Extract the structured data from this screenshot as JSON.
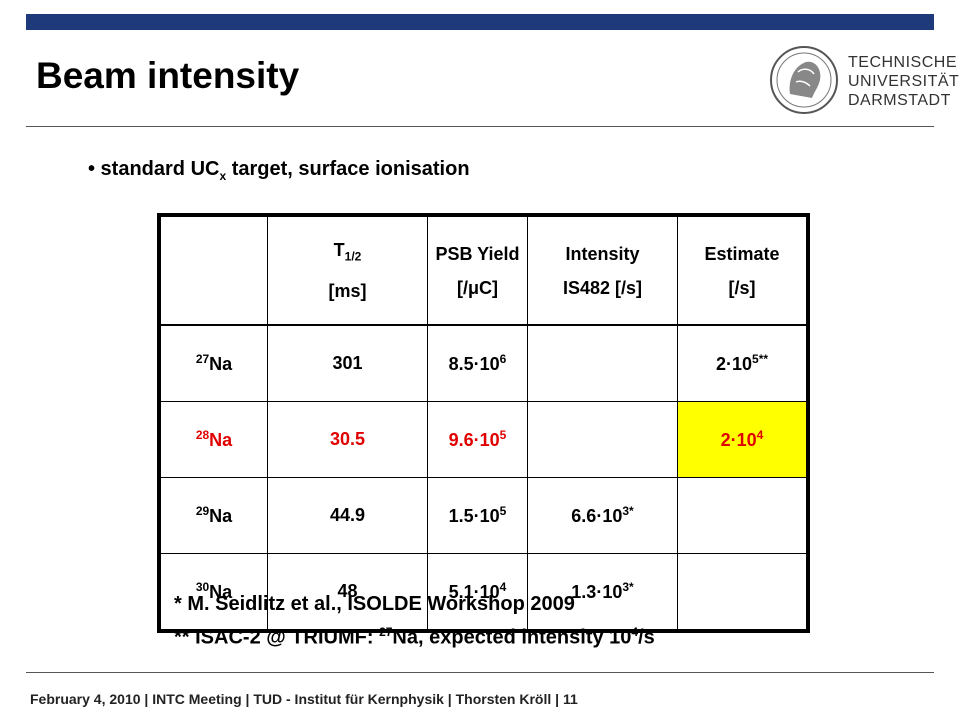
{
  "slide": {
    "title": "Beam intensity",
    "bullet_pre": "• standard UC",
    "bullet_sub": "x",
    "bullet_post": " target, surface ionisation"
  },
  "logo": {
    "line1": "TECHNISCHE",
    "line2": "UNIVERSITÄT",
    "line3": "DARMSTADT"
  },
  "table": {
    "header": {
      "t_half": "T",
      "t_half_sub": "1/2",
      "t_half_unit": "[ms]",
      "psb_line1": "PSB Yield",
      "psb_line2_pre": "[/",
      "psb_line2_mu": "μ",
      "psb_line2_post": "C]",
      "int_line1": "Intensity",
      "int_line2": "IS482 [/s]",
      "est_line1": "Estimate",
      "est_line2": "[/s]"
    },
    "rows": [
      {
        "iso_mass": "27",
        "iso_el": "Na",
        "thalf": "301",
        "yield_base": "8.5·10",
        "yield_exp": "6",
        "int_base": "",
        "int_exp": "",
        "int_mark": "",
        "est_base": "2·10",
        "est_exp": "5",
        "est_mark": "**"
      },
      {
        "iso_mass": "28",
        "iso_el": "Na",
        "thalf": "30.5",
        "yield_base": "9.6·10",
        "yield_exp": "5",
        "int_base": "",
        "int_exp": "",
        "int_mark": "",
        "est_base": "2·10",
        "est_exp": "4",
        "est_mark": ""
      },
      {
        "iso_mass": "29",
        "iso_el": "Na",
        "thalf": "44.9",
        "yield_base": "1.5·10",
        "yield_exp": "5",
        "int_base": "6.6·10",
        "int_exp": "3",
        "int_mark": "*",
        "est_base": "",
        "est_exp": "",
        "est_mark": ""
      },
      {
        "iso_mass": "30",
        "iso_el": "Na",
        "thalf": "48",
        "yield_base": "5.1·10",
        "yield_exp": "4",
        "int_base": "1.3·10",
        "int_exp": "3",
        "int_mark": "*",
        "est_base": "",
        "est_exp": "",
        "est_mark": ""
      }
    ],
    "highlight_color": "#ffff00",
    "red_color": "#e00000"
  },
  "footnotes": {
    "line1": "* M. Seidlitz et al., ISOLDE Workshop 2009",
    "line2_pre": "** ISAC-2 @ TRIUMF: ",
    "line2_mass": "27",
    "line2_mid": "Na, expected intensity 10",
    "line2_exp": "4",
    "line2_post": "/s"
  },
  "footer": {
    "text": "February 4, 2010  |  INTC Meeting  |  TUD - Institut für Kernphysik  |  Thorsten Kröll  |  11"
  },
  "colors": {
    "topbar": "#1f3a7a"
  }
}
